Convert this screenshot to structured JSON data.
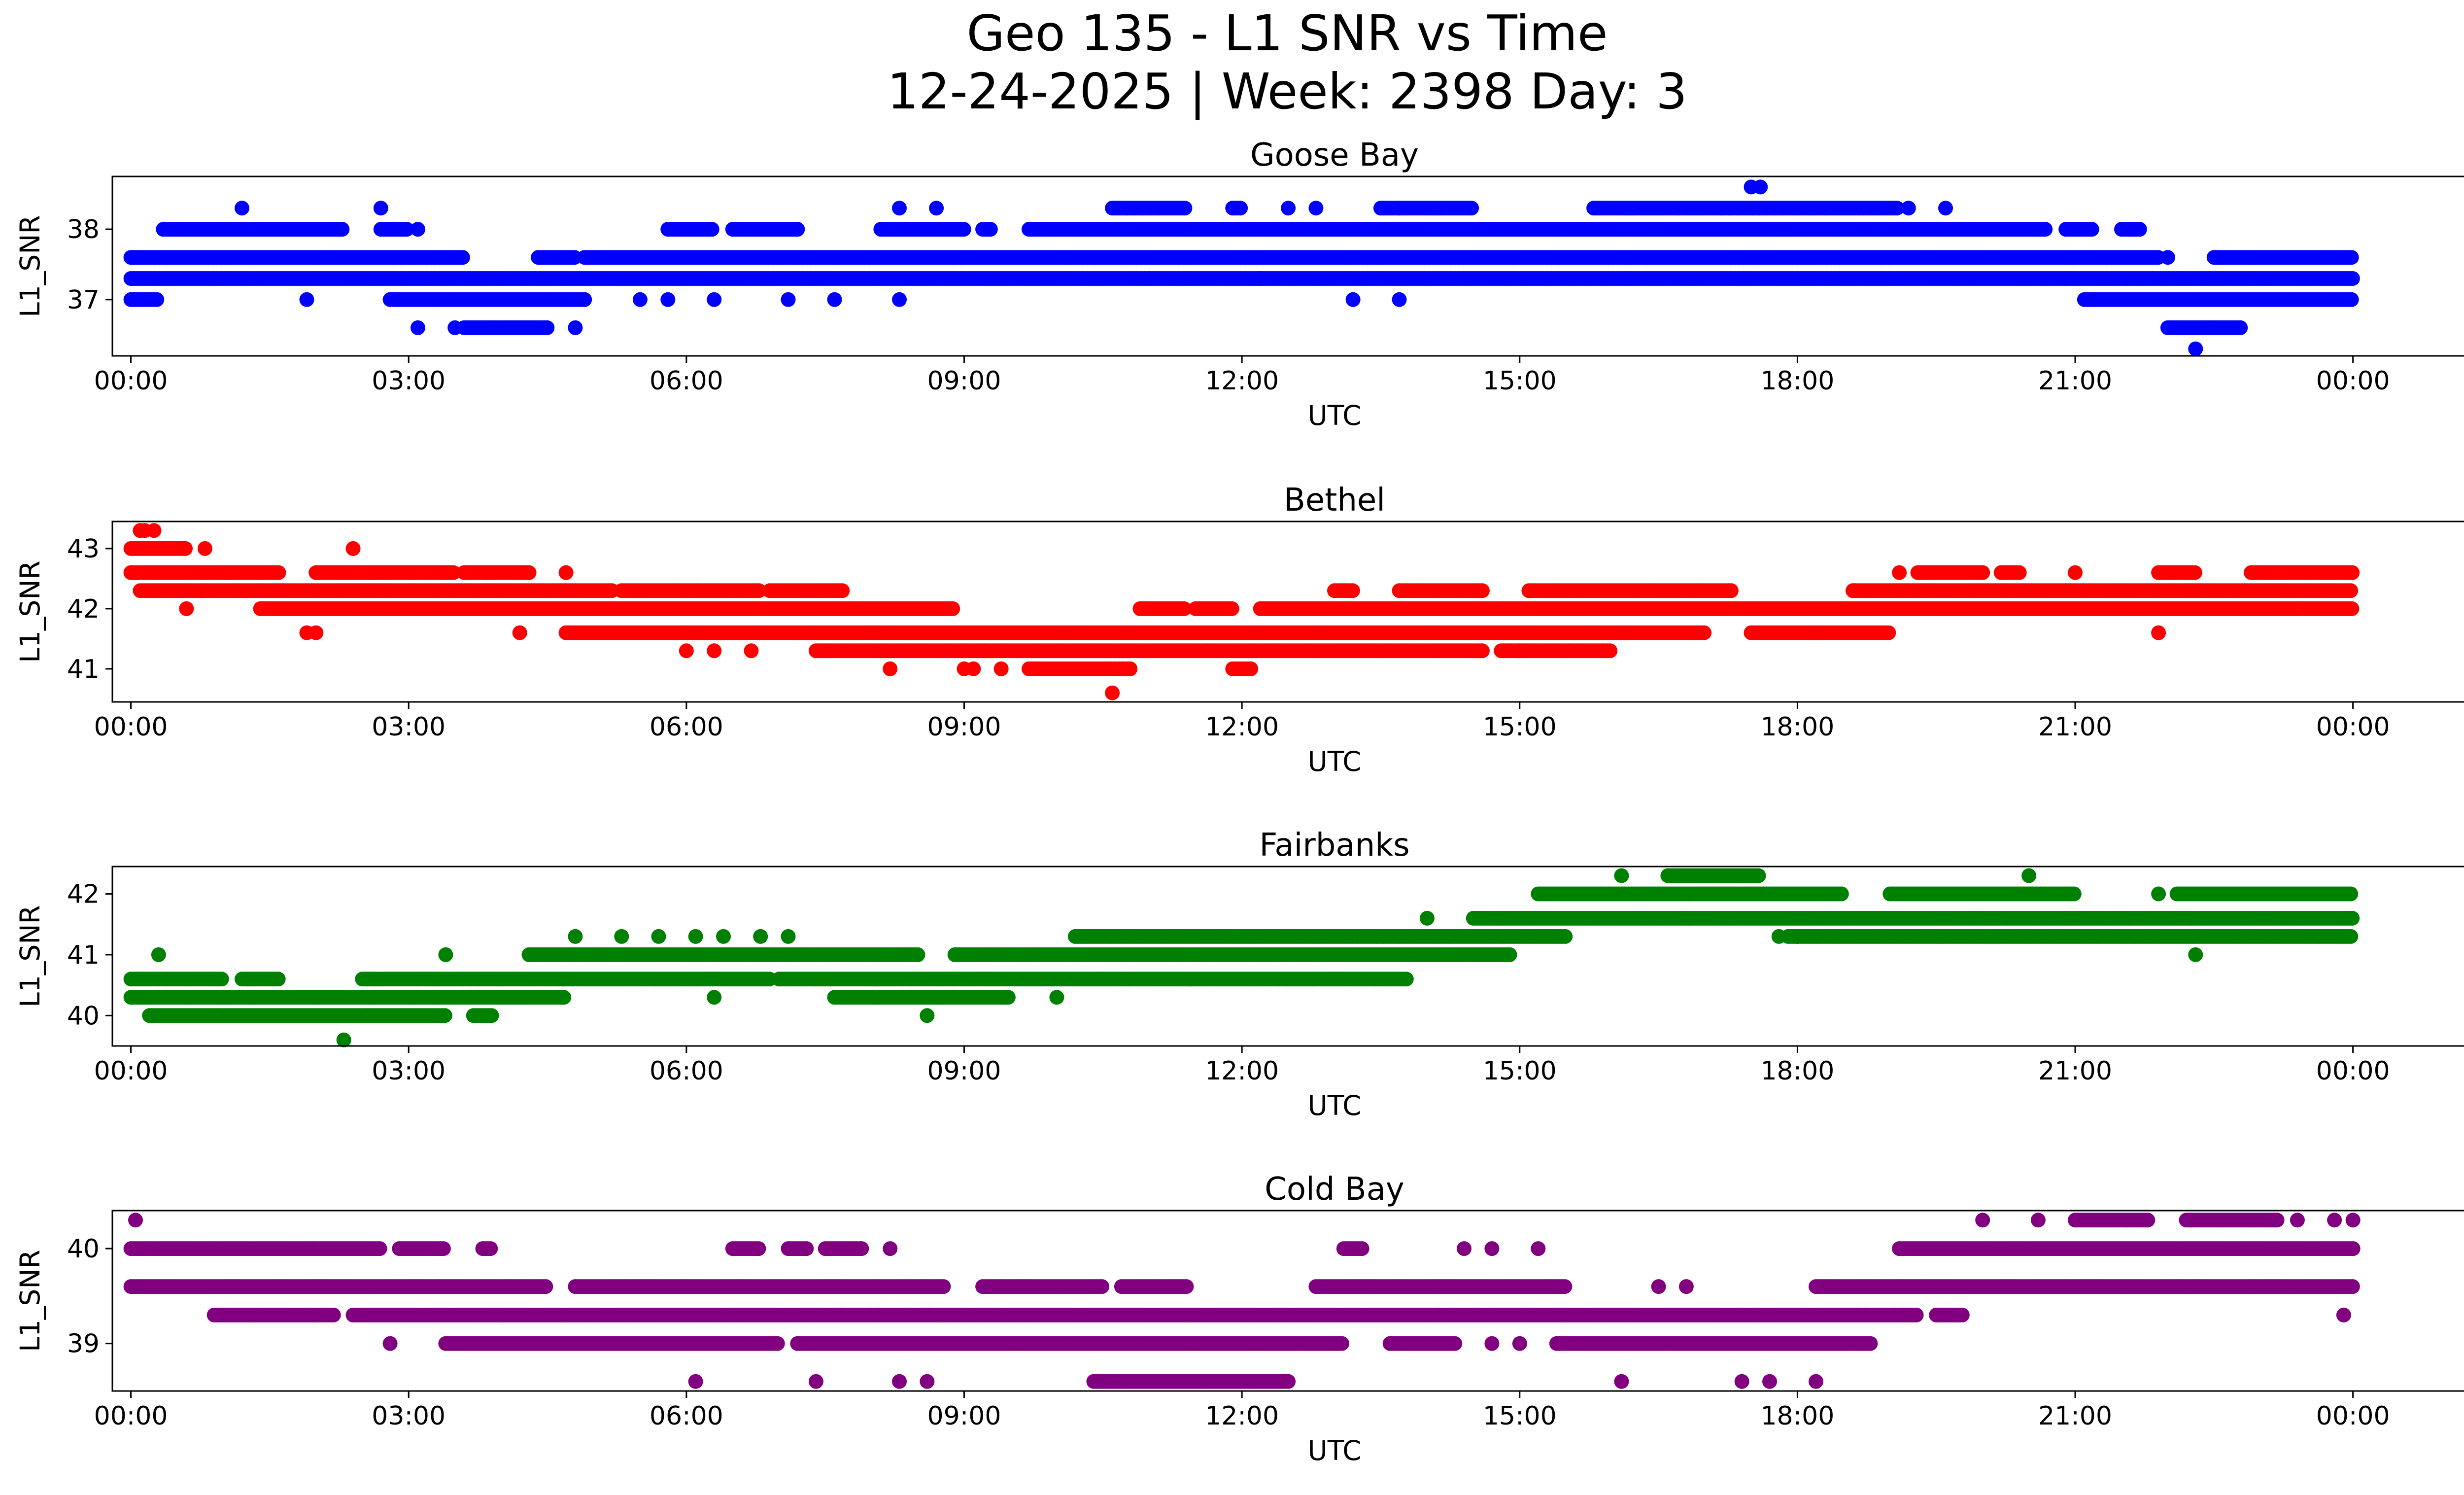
{
  "figure": {
    "title_line1": "Geo 135 - L1 SNR vs Time",
    "title_line2": "12-24-2025 | Week: 2398 Day: 3"
  },
  "chart_data": [
    {
      "type": "scatter",
      "title": "Goose Bay",
      "xlabel": "UTC",
      "ylabel": "L1_SNR",
      "color": "#0000ff",
      "xlim": [
        -0.2,
        26.2
      ],
      "ylim": [
        36.2,
        38.75
      ],
      "xticks": [
        "00:00",
        "03:00",
        "06:00",
        "09:00",
        "12:00",
        "15:00",
        "18:00",
        "21:00",
        "00:00"
      ],
      "xtick_hours": [
        0,
        3,
        6,
        9,
        12,
        15,
        18,
        21,
        24
      ],
      "yticks": [
        37,
        38
      ],
      "levels": [
        36.3,
        36.6,
        37.0,
        37.3,
        37.6,
        38.0,
        38.3,
        38.6
      ],
      "bands": [
        {
          "y": 37.3,
          "ranges": [
            [
              0,
              24
            ]
          ]
        },
        {
          "y": 37.6,
          "ranges": [
            [
              0,
              3.6
            ],
            [
              4.4,
              4.8
            ],
            [
              4.9,
              21.9
            ],
            [
              22.5,
              24
            ]
          ]
        },
        {
          "y": 37.0,
          "ranges": [
            [
              0,
              0.3
            ],
            [
              2.8,
              4.9
            ],
            [
              21.1,
              24
            ]
          ]
        },
        {
          "y": 38.0,
          "ranges": [
            [
              0.35,
              2.3
            ],
            [
              2.7,
              3.0
            ],
            [
              5.8,
              6.3
            ],
            [
              6.5,
              7.2
            ],
            [
              8.1,
              9.0
            ],
            [
              9.2,
              9.3
            ],
            [
              9.7,
              20.7
            ],
            [
              20.9,
              21.2
            ],
            [
              21.5,
              21.7
            ]
          ]
        },
        {
          "y": 38.3,
          "ranges": [
            [
              10.6,
              11.4
            ],
            [
              11.9,
              12.0
            ],
            [
              13.5,
              14.5
            ],
            [
              15.8,
              19.1
            ]
          ]
        },
        {
          "y": 36.6,
          "ranges": [
            [
              3.6,
              4.5
            ],
            [
              22.0,
              22.8
            ]
          ]
        }
      ],
      "points": [
        {
          "x": 1.2,
          "y": 38.3
        },
        {
          "x": 2.7,
          "y": 38.3
        },
        {
          "x": 3.1,
          "y": 38.0
        },
        {
          "x": 8.3,
          "y": 38.3
        },
        {
          "x": 8.7,
          "y": 38.3
        },
        {
          "x": 12.5,
          "y": 38.3
        },
        {
          "x": 12.8,
          "y": 38.3
        },
        {
          "x": 13.7,
          "y": 38.3
        },
        {
          "x": 17.5,
          "y": 38.6
        },
        {
          "x": 17.6,
          "y": 38.6
        },
        {
          "x": 19.6,
          "y": 38.3
        },
        {
          "x": 19.2,
          "y": 38.3
        },
        {
          "x": 22.0,
          "y": 37.6
        },
        {
          "x": 22.3,
          "y": 36.3
        },
        {
          "x": 3.1,
          "y": 36.6
        },
        {
          "x": 3.5,
          "y": 36.6
        },
        {
          "x": 4.8,
          "y": 36.6
        },
        {
          "x": 1.9,
          "y": 37.0
        },
        {
          "x": 5.5,
          "y": 37.0
        },
        {
          "x": 5.8,
          "y": 37.0
        },
        {
          "x": 6.3,
          "y": 37.0
        },
        {
          "x": 7.1,
          "y": 37.0
        },
        {
          "x": 7.6,
          "y": 37.0
        },
        {
          "x": 8.3,
          "y": 37.0
        },
        {
          "x": 13.2,
          "y": 37.0
        },
        {
          "x": 13.7,
          "y": 37.0
        },
        {
          "x": 11.0,
          "y": 37.3
        },
        {
          "x": 12.2,
          "y": 37.3
        }
      ]
    },
    {
      "type": "scatter",
      "title": "Bethel",
      "xlabel": "UTC",
      "ylabel": "L1_SNR",
      "color": "#ff0000",
      "xlim": [
        -0.2,
        26.2
      ],
      "ylim": [
        40.45,
        43.45
      ],
      "xticks": [
        "00:00",
        "03:00",
        "06:00",
        "09:00",
        "12:00",
        "15:00",
        "18:00",
        "21:00",
        "00:00"
      ],
      "xtick_hours": [
        0,
        3,
        6,
        9,
        12,
        15,
        18,
        21,
        24
      ],
      "yticks": [
        41,
        42,
        43
      ],
      "levels": [
        40.6,
        41.0,
        41.3,
        41.6,
        42.0,
        42.3,
        42.6,
        43.0,
        43.3
      ],
      "bands": [
        {
          "y": 42.6,
          "ranges": [
            [
              0,
              1.6
            ],
            [
              2.0,
              3.5
            ],
            [
              3.6,
              4.3
            ],
            [
              19.3,
              20.0
            ],
            [
              20.2,
              20.4
            ],
            [
              21.9,
              22.3
            ],
            [
              22.9,
              24
            ]
          ]
        },
        {
          "y": 42.3,
          "ranges": [
            [
              0.1,
              5.2
            ],
            [
              5.3,
              6.8
            ],
            [
              6.9,
              7.7
            ],
            [
              13.0,
              13.2
            ],
            [
              13.7,
              14.6
            ],
            [
              15.1,
              17.3
            ],
            [
              18.6,
              24
            ]
          ]
        },
        {
          "y": 42.0,
          "ranges": [
            [
              1.4,
              8.9
            ],
            [
              10.9,
              11.4
            ],
            [
              11.5,
              11.9
            ],
            [
              12.2,
              24
            ]
          ]
        },
        {
          "y": 41.6,
          "ranges": [
            [
              4.7,
              17.0
            ],
            [
              17.5,
              19.0
            ]
          ]
        },
        {
          "y": 41.3,
          "ranges": [
            [
              7.4,
              14.6
            ],
            [
              14.8,
              16.0
            ]
          ]
        },
        {
          "y": 41.0,
          "ranges": [
            [
              9.7,
              10.8
            ],
            [
              11.9,
              12.1
            ]
          ]
        },
        {
          "y": 43.0,
          "ranges": [
            [
              0,
              0.6
            ]
          ]
        }
      ],
      "points": [
        {
          "x": 0.1,
          "y": 43.3
        },
        {
          "x": 0.15,
          "y": 43.3
        },
        {
          "x": 0.25,
          "y": 43.3
        },
        {
          "x": 0.8,
          "y": 43.0
        },
        {
          "x": 2.4,
          "y": 43.0
        },
        {
          "x": 0.6,
          "y": 42.0
        },
        {
          "x": 1.9,
          "y": 41.6
        },
        {
          "x": 2.0,
          "y": 41.6
        },
        {
          "x": 4.2,
          "y": 41.6
        },
        {
          "x": 4.7,
          "y": 42.6
        },
        {
          "x": 6.0,
          "y": 41.3
        },
        {
          "x": 6.3,
          "y": 41.3
        },
        {
          "x": 6.7,
          "y": 41.3
        },
        {
          "x": 8.2,
          "y": 41.0
        },
        {
          "x": 9.0,
          "y": 41.0
        },
        {
          "x": 9.1,
          "y": 41.0
        },
        {
          "x": 9.4,
          "y": 41.0
        },
        {
          "x": 10.6,
          "y": 40.6
        },
        {
          "x": 15.0,
          "y": 41.3
        },
        {
          "x": 18.6,
          "y": 42.3
        },
        {
          "x": 19.1,
          "y": 42.6
        },
        {
          "x": 21.9,
          "y": 41.6
        },
        {
          "x": 23.4,
          "y": 42.0
        },
        {
          "x": 23.6,
          "y": 42.0
        },
        {
          "x": 21.0,
          "y": 42.6
        }
      ]
    },
    {
      "type": "scatter",
      "title": "Fairbanks",
      "xlabel": "UTC",
      "ylabel": "L1_SNR",
      "color": "#008000",
      "xlim": [
        -0.2,
        26.2
      ],
      "ylim": [
        39.5,
        42.45
      ],
      "xticks": [
        "00:00",
        "03:00",
        "06:00",
        "09:00",
        "12:00",
        "15:00",
        "18:00",
        "21:00",
        "00:00"
      ],
      "xtick_hours": [
        0,
        3,
        6,
        9,
        12,
        15,
        18,
        21,
        24
      ],
      "yticks": [
        40,
        41,
        42
      ],
      "levels": [
        39.6,
        40.0,
        40.3,
        40.6,
        41.0,
        41.3,
        41.6,
        42.0,
        42.3
      ],
      "bands": [
        {
          "y": 40.3,
          "ranges": [
            [
              0,
              4.7
            ],
            [
              7.6,
              9.5
            ]
          ]
        },
        {
          "y": 40.0,
          "ranges": [
            [
              0.2,
              3.4
            ],
            [
              3.7,
              3.9
            ]
          ]
        },
        {
          "y": 40.6,
          "ranges": [
            [
              0,
              1.0
            ],
            [
              1.2,
              1.6
            ],
            [
              2.5,
              6.9
            ],
            [
              7.0,
              13.8
            ]
          ]
        },
        {
          "y": 41.0,
          "ranges": [
            [
              4.3,
              8.5
            ],
            [
              8.9,
              14.9
            ]
          ]
        },
        {
          "y": 41.3,
          "ranges": [
            [
              10.2,
              15.5
            ],
            [
              17.9,
              24
            ]
          ]
        },
        {
          "y": 41.6,
          "ranges": [
            [
              14.5,
              24
            ]
          ]
        },
        {
          "y": 42.0,
          "ranges": [
            [
              15.2,
              18.5
            ],
            [
              19.0,
              21.0
            ],
            [
              22.1,
              24
            ]
          ]
        },
        {
          "y": 42.3,
          "ranges": [
            [
              16.6,
              17.6
            ]
          ]
        }
      ],
      "points": [
        {
          "x": 0.3,
          "y": 41.0
        },
        {
          "x": 2.3,
          "y": 39.6
        },
        {
          "x": 3.4,
          "y": 41.0
        },
        {
          "x": 4.8,
          "y": 41.3
        },
        {
          "x": 5.3,
          "y": 41.3
        },
        {
          "x": 5.7,
          "y": 41.3
        },
        {
          "x": 6.1,
          "y": 41.3
        },
        {
          "x": 6.4,
          "y": 41.3
        },
        {
          "x": 6.8,
          "y": 41.3
        },
        {
          "x": 7.1,
          "y": 41.3
        },
        {
          "x": 6.3,
          "y": 40.3
        },
        {
          "x": 8.6,
          "y": 40.0
        },
        {
          "x": 10.0,
          "y": 40.3
        },
        {
          "x": 16.1,
          "y": 42.3
        },
        {
          "x": 20.5,
          "y": 42.3
        },
        {
          "x": 21.9,
          "y": 42.0
        },
        {
          "x": 22.3,
          "y": 41.0
        },
        {
          "x": 17.8,
          "y": 41.3
        },
        {
          "x": 18.0,
          "y": 41.3
        },
        {
          "x": 14.0,
          "y": 41.6
        }
      ]
    },
    {
      "type": "scatter",
      "title": "Cold Bay",
      "xlabel": "UTC",
      "ylabel": "L1_SNR",
      "color": "#800080",
      "xlim": [
        -0.2,
        26.2
      ],
      "ylim": [
        38.5,
        40.4
      ],
      "xticks": [
        "00:00",
        "03:00",
        "06:00",
        "09:00",
        "12:00",
        "15:00",
        "18:00",
        "21:00",
        "00:00"
      ],
      "xtick_hours": [
        0,
        3,
        6,
        9,
        12,
        15,
        18,
        21,
        24
      ],
      "yticks": [
        39,
        40
      ],
      "levels": [
        38.6,
        39.0,
        39.3,
        39.6,
        40.0,
        40.3
      ],
      "bands": [
        {
          "y": 39.6,
          "ranges": [
            [
              0,
              4.5
            ],
            [
              4.8,
              8.8
            ],
            [
              9.2,
              10.5
            ],
            [
              10.7,
              11.4
            ],
            [
              12.8,
              15.5
            ],
            [
              18.2,
              24
            ]
          ]
        },
        {
          "y": 39.3,
          "ranges": [
            [
              0.9,
              2.2
            ],
            [
              2.4,
              19.3
            ],
            [
              19.5,
              19.8
            ]
          ]
        },
        {
          "y": 39.0,
          "ranges": [
            [
              3.4,
              7.0
            ],
            [
              7.2,
              13.1
            ],
            [
              13.6,
              14.3
            ],
            [
              15.4,
              18.8
            ]
          ]
        },
        {
          "y": 40.0,
          "ranges": [
            [
              0,
              2.7
            ],
            [
              2.9,
              3.4
            ],
            [
              3.8,
              3.9
            ],
            [
              6.5,
              6.8
            ],
            [
              7.1,
              7.3
            ],
            [
              7.5,
              7.9
            ],
            [
              13.1,
              13.3
            ],
            [
              19.1,
              24
            ]
          ]
        },
        {
          "y": 38.6,
          "ranges": [
            [
              10.4,
              12.5
            ]
          ]
        },
        {
          "y": 40.3,
          "ranges": [
            [
              21.0,
              21.8
            ],
            [
              22.2,
              23.2
            ]
          ]
        }
      ],
      "points": [
        {
          "x": 0.05,
          "y": 40.3
        },
        {
          "x": 2.8,
          "y": 39.0
        },
        {
          "x": 6.1,
          "y": 38.6
        },
        {
          "x": 7.4,
          "y": 38.6
        },
        {
          "x": 8.3,
          "y": 38.6
        },
        {
          "x": 8.6,
          "y": 38.6
        },
        {
          "x": 8.2,
          "y": 40.0
        },
        {
          "x": 14.7,
          "y": 39.0
        },
        {
          "x": 15.0,
          "y": 39.0
        },
        {
          "x": 14.4,
          "y": 40.0
        },
        {
          "x": 14.7,
          "y": 40.0
        },
        {
          "x": 15.2,
          "y": 40.0
        },
        {
          "x": 16.5,
          "y": 39.6
        },
        {
          "x": 16.8,
          "y": 39.6
        },
        {
          "x": 16.1,
          "y": 38.6
        },
        {
          "x": 17.4,
          "y": 38.6
        },
        {
          "x": 17.7,
          "y": 38.6
        },
        {
          "x": 18.2,
          "y": 38.6
        },
        {
          "x": 20.0,
          "y": 40.3
        },
        {
          "x": 20.6,
          "y": 40.3
        },
        {
          "x": 23.4,
          "y": 40.3
        },
        {
          "x": 23.8,
          "y": 40.3
        },
        {
          "x": 23.9,
          "y": 39.3
        },
        {
          "x": 24.0,
          "y": 40.3
        }
      ]
    }
  ]
}
